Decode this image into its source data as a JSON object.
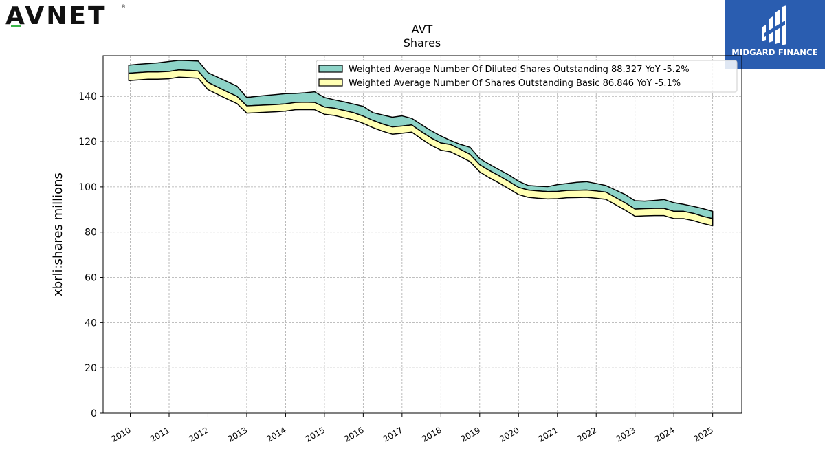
{
  "brand": {
    "left_logo": "AVNET",
    "right_logo": "MIDGARD FINANCE"
  },
  "colors": {
    "diluted_fill": "#8dd3c7",
    "basic_fill": "#ffffb3",
    "edge": "#000000",
    "grid": "#aaaaaa",
    "avnet_accent": "#3bb54a",
    "midgard_bg": "#2a5db0"
  },
  "chart_data": {
    "type": "area",
    "title": "AVT",
    "subtitle": "Shares",
    "xlabel": "",
    "ylabel": "xbrli:shares millions",
    "ylim": [
      0,
      158
    ],
    "xlim": [
      2009.3,
      2025.75
    ],
    "yticks": [
      0,
      20,
      40,
      60,
      80,
      100,
      120,
      140
    ],
    "xticks": [
      2010,
      2011,
      2012,
      2013,
      2014,
      2015,
      2016,
      2017,
      2018,
      2019,
      2020,
      2021,
      2022,
      2023,
      2024,
      2025
    ],
    "grid": true,
    "legend_position": "top-right",
    "series": [
      {
        "name": "Weighted Average Number Of Diluted Shares Outstanding",
        "legend_label": "Weighted Average Number Of Diluted Shares Outstanding  88.327 YoY -5.2%",
        "x": [
          2009.96,
          2010.21,
          2010.46,
          2010.71,
          2011.0,
          2011.25,
          2011.5,
          2011.75,
          2012.0,
          2012.25,
          2012.5,
          2012.75,
          2013.0,
          2013.25,
          2013.5,
          2013.75,
          2014.0,
          2014.25,
          2014.5,
          2014.75,
          2015.0,
          2015.25,
          2015.5,
          2015.75,
          2016.0,
          2016.25,
          2016.5,
          2016.75,
          2017.0,
          2017.25,
          2017.5,
          2017.75,
          2018.0,
          2018.25,
          2018.5,
          2018.75,
          2019.0,
          2019.25,
          2019.5,
          2019.75,
          2020.0,
          2020.25,
          2020.5,
          2020.75,
          2021.0,
          2021.25,
          2021.5,
          2021.75,
          2022.0,
          2022.25,
          2022.5,
          2022.75,
          2023.0,
          2023.25,
          2023.5,
          2023.75,
          2024.0,
          2024.25,
          2024.5,
          2024.75,
          2025.0
        ],
        "values": [
          153.8,
          154.2,
          154.5,
          154.8,
          155.4,
          155.9,
          155.8,
          155.6,
          150.5,
          148.5,
          146.5,
          144.5,
          139.5,
          140.0,
          140.4,
          140.8,
          141.2,
          141.3,
          141.6,
          142.0,
          139.5,
          138.5,
          137.6,
          136.6,
          135.6,
          132.8,
          131.8,
          130.8,
          131.4,
          130.3,
          127.5,
          124.8,
          122.5,
          120.5,
          118.8,
          117.5,
          112.5,
          110.0,
          107.6,
          105.3,
          102.5,
          100.6,
          100.3,
          100.1,
          101.0,
          101.5,
          102.0,
          102.3,
          101.5,
          100.6,
          98.6,
          96.6,
          93.9,
          93.7,
          94.0,
          94.4,
          93.0,
          92.3,
          91.4,
          90.4,
          89.2
        ]
      },
      {
        "name": "Weighted Average Number Of Shares Outstanding Basic",
        "legend_label": "Weighted Average Number Of Shares Outstanding Basic  86.846 YoY -5.1%",
        "x": [
          2009.96,
          2010.21,
          2010.46,
          2010.71,
          2011.0,
          2011.25,
          2011.5,
          2011.75,
          2012.0,
          2012.25,
          2012.5,
          2012.75,
          2013.0,
          2013.25,
          2013.5,
          2013.75,
          2014.0,
          2014.25,
          2014.5,
          2014.75,
          2015.0,
          2015.25,
          2015.5,
          2015.75,
          2016.0,
          2016.25,
          2016.5,
          2016.75,
          2017.0,
          2017.25,
          2017.5,
          2017.75,
          2018.0,
          2018.25,
          2018.5,
          2018.75,
          2019.0,
          2019.25,
          2019.5,
          2019.75,
          2020.0,
          2020.25,
          2020.5,
          2020.75,
          2021.0,
          2021.25,
          2021.5,
          2021.75,
          2022.0,
          2022.25,
          2022.5,
          2022.75,
          2023.0,
          2023.25,
          2023.5,
          2023.75,
          2024.0,
          2024.25,
          2024.5,
          2024.75,
          2025.0
        ],
        "values": [
          150.2,
          150.5,
          150.8,
          150.8,
          151.0,
          151.7,
          151.5,
          151.2,
          146.2,
          144.1,
          142.0,
          140.0,
          135.8,
          136.0,
          136.2,
          136.4,
          136.7,
          137.3,
          137.4,
          137.3,
          135.3,
          134.8,
          133.8,
          132.8,
          131.3,
          129.4,
          127.8,
          126.5,
          126.9,
          127.4,
          124.4,
          121.6,
          119.4,
          118.7,
          116.6,
          114.4,
          109.8,
          107.2,
          104.9,
          102.4,
          99.8,
          98.6,
          98.2,
          97.9,
          98.0,
          98.4,
          98.5,
          98.6,
          98.2,
          97.7,
          95.3,
          92.9,
          90.2,
          90.4,
          90.5,
          90.5,
          89.2,
          89.2,
          88.3,
          87.0,
          86.0
        ]
      }
    ]
  }
}
